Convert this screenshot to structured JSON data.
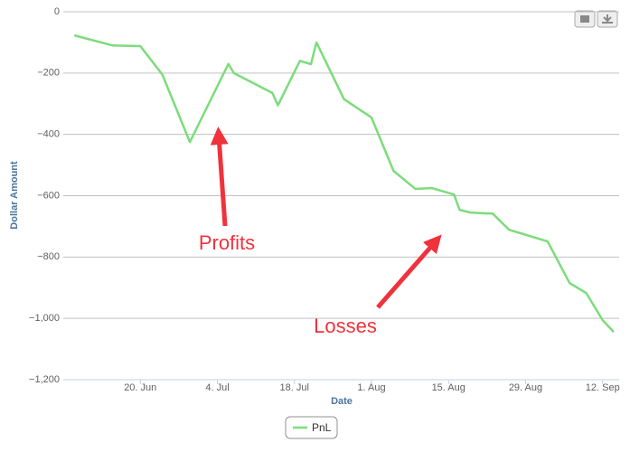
{
  "chart_data": {
    "type": "line",
    "x_label": "Date",
    "y_label": "Dollar Amount",
    "x": [
      159,
      166,
      171,
      175,
      180,
      187,
      188,
      195,
      196,
      200,
      202,
      203,
      208,
      213,
      217,
      221,
      224,
      228,
      229,
      231,
      234,
      235,
      238,
      245,
      249,
      252,
      255,
      257
    ],
    "series": [
      {
        "name": "PnL",
        "color": "#7cdc7c",
        "values": [
          -77,
          -110,
          -112,
          -205,
          -425,
          -170,
          -200,
          -265,
          -305,
          -160,
          -171,
          -100,
          -285,
          -345,
          -519,
          -578,
          -575,
          -596,
          -646,
          -655,
          -658,
          -658,
          -711,
          -749,
          -885,
          -917,
          -1006,
          -1044
        ]
      }
    ],
    "xlim": [
      157,
      258
    ],
    "xticks": [
      {
        "value": 171,
        "label": "20. Jun"
      },
      {
        "value": 185,
        "label": "4. Jul"
      },
      {
        "value": 199,
        "label": "18. Jul"
      },
      {
        "value": 213,
        "label": "1. Aug"
      },
      {
        "value": 227,
        "label": "15. Aug"
      },
      {
        "value": 241,
        "label": "29. Aug"
      },
      {
        "value": 255,
        "label": "12. Sep"
      }
    ],
    "ylim": [
      -1200,
      0
    ],
    "yticks": [
      0,
      {
        "value": -200,
        "label": "−200"
      },
      {
        "value": -400,
        "label": "−400"
      },
      {
        "value": -600,
        "label": "−600"
      },
      {
        "value": -800,
        "label": "−800"
      },
      {
        "value": -1000,
        "label": "−1,000"
      },
      {
        "value": -1200,
        "label": "−1,200"
      }
    ],
    "grid": true,
    "annotations": [
      "Profits",
      "Losses"
    ]
  }
}
